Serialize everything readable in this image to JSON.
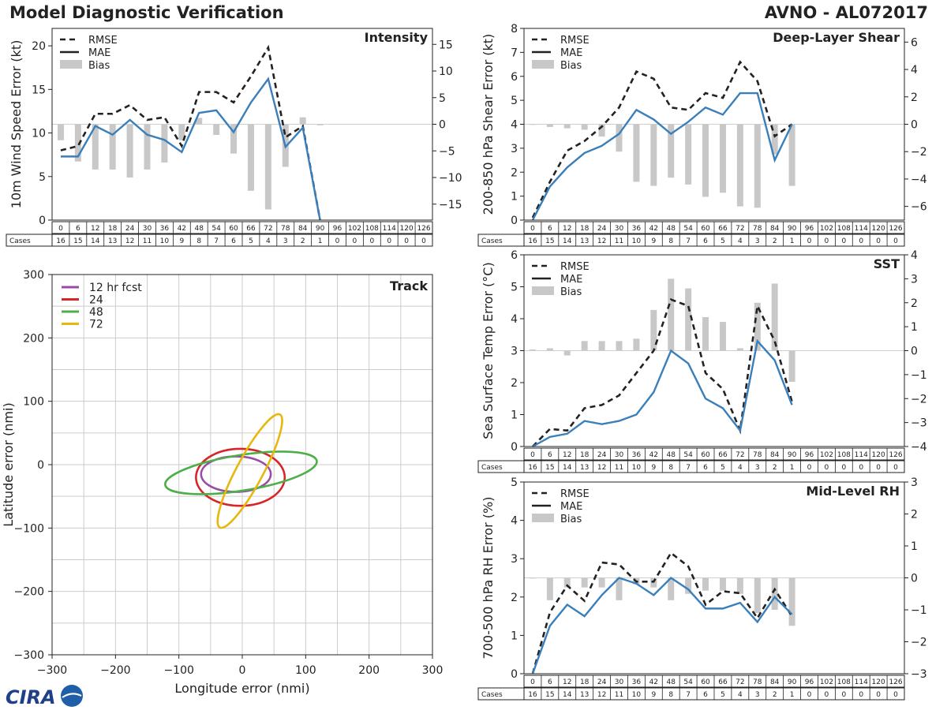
{
  "header": {
    "title": "Model Diagnostic Verification",
    "model_storm": "AVNO - AL072017"
  },
  "logo": {
    "text": "CIRA"
  },
  "colors": {
    "rmse": "#222222",
    "mae": "#3a7fba",
    "bias": "#c8c8c8",
    "grid": "#cccccc",
    "ellipse_12": "#9b4ba3",
    "ellipse_24": "#d62728",
    "ellipse_48": "#4daf4a",
    "ellipse_72": "#e8b70f"
  },
  "legend_labels": {
    "rmse": "RMSE",
    "mae": "MAE",
    "bias": "Bias"
  },
  "cases_label": "Cases",
  "lead_hours": [
    "0",
    "6",
    "12",
    "18",
    "24",
    "30",
    "36",
    "42",
    "48",
    "54",
    "60",
    "66",
    "72",
    "78",
    "84",
    "90",
    "96",
    "102",
    "108",
    "114",
    "120",
    "126"
  ],
  "cases": [
    "16",
    "15",
    "14",
    "13",
    "12",
    "11",
    "10",
    "9",
    "8",
    "7",
    "6",
    "5",
    "4",
    "3",
    "2",
    "1",
    "0",
    "0",
    "0",
    "0",
    "0",
    "0"
  ],
  "chart_data": [
    {
      "id": "intensity",
      "type": "line",
      "title": "Intensity",
      "ylabel": "10m Wind Speed Error (kt)",
      "ylim": [
        0,
        22
      ],
      "yticks": [
        0,
        5,
        10,
        15,
        20
      ],
      "y2lim": [
        -18,
        18
      ],
      "y2ticks": [
        -15,
        -10,
        -5,
        0,
        5,
        10,
        15
      ],
      "x": [
        0,
        6,
        12,
        18,
        24,
        30,
        36,
        42,
        48,
        54,
        60,
        66,
        72,
        78,
        84,
        90
      ],
      "rmse": [
        8.0,
        8.5,
        12.2,
        12.2,
        13.2,
        11.5,
        11.8,
        8.5,
        14.7,
        14.7,
        13.5,
        16.5,
        19.8,
        9.5,
        10.8,
        0
      ],
      "mae": [
        7.3,
        7.3,
        10.8,
        9.8,
        11.5,
        9.8,
        9.2,
        7.8,
        12.3,
        12.6,
        10.1,
        13.5,
        16.2,
        8.4,
        10.6,
        0
      ],
      "bias": [
        -3.0,
        -7.0,
        -8.5,
        -8.5,
        -10.0,
        -8.5,
        -7.2,
        -3.0,
        1.2,
        -2.0,
        -5.5,
        -12.5,
        -16.0,
        -8.0,
        1.3,
        -0.2
      ]
    },
    {
      "id": "shear",
      "type": "line",
      "title": "Deep-Layer Shear",
      "ylabel": "200-850 hPa Shear Error (kt)",
      "ylim": [
        0,
        8
      ],
      "yticks": [
        0,
        1,
        2,
        3,
        4,
        5,
        6,
        7,
        8
      ],
      "y2lim": [
        -7,
        7
      ],
      "y2ticks": [
        -6,
        -4,
        -2,
        0,
        2,
        4,
        6
      ],
      "x": [
        0,
        6,
        12,
        18,
        24,
        30,
        36,
        42,
        48,
        54,
        60,
        66,
        72,
        78,
        84,
        90
      ],
      "rmse": [
        0.1,
        1.6,
        2.9,
        3.3,
        3.9,
        4.7,
        6.2,
        5.9,
        4.7,
        4.6,
        5.3,
        5.1,
        6.6,
        5.8,
        3.5,
        4.0
      ],
      "mae": [
        0.0,
        1.4,
        2.2,
        2.8,
        3.1,
        3.6,
        4.6,
        4.2,
        3.6,
        4.1,
        4.7,
        4.4,
        5.3,
        5.3,
        2.5,
        4.0
      ],
      "bias": [
        0.0,
        -0.2,
        -0.3,
        -0.4,
        -0.9,
        -2.0,
        -4.2,
        -4.5,
        -3.9,
        -4.4,
        -5.3,
        -5.0,
        -6.0,
        -6.1,
        -2.2,
        -4.5
      ]
    },
    {
      "id": "sst",
      "type": "line",
      "title": "SST",
      "ylabel": "Sea Surface Temp Error (°C)",
      "ylim": [
        0,
        6
      ],
      "yticks": [
        0,
        1,
        2,
        3,
        4,
        5,
        6
      ],
      "y2lim": [
        -4,
        4
      ],
      "y2ticks": [
        -4,
        -3,
        -2,
        -1,
        0,
        1,
        2,
        3,
        4
      ],
      "x": [
        0,
        6,
        12,
        18,
        24,
        30,
        36,
        42,
        48,
        54,
        60,
        66,
        72,
        78,
        84,
        90
      ],
      "rmse": [
        0.0,
        0.55,
        0.5,
        1.2,
        1.3,
        1.6,
        2.3,
        3.0,
        4.6,
        4.4,
        2.3,
        1.8,
        0.5,
        4.4,
        3.3,
        1.4
      ],
      "mae": [
        0.0,
        0.3,
        0.4,
        0.8,
        0.7,
        0.8,
        1.0,
        1.7,
        3.0,
        2.6,
        1.5,
        1.2,
        0.5,
        3.3,
        2.7,
        1.3
      ],
      "bias": [
        0.05,
        0.1,
        -0.2,
        0.4,
        0.4,
        0.4,
        0.5,
        1.7,
        3.0,
        2.6,
        1.4,
        1.2,
        0.1,
        2.0,
        2.8,
        -1.3
      ]
    },
    {
      "id": "rh",
      "type": "line",
      "title": "Mid-Level RH",
      "ylabel": "700-500 hPa RH Error (%)",
      "ylim": [
        0,
        5
      ],
      "yticks": [
        0,
        1,
        2,
        3,
        4,
        5
      ],
      "y2lim": [
        -3,
        3
      ],
      "y2ticks": [
        -3,
        -2,
        -1,
        0,
        1,
        2,
        3
      ],
      "x": [
        0,
        6,
        12,
        18,
        24,
        30,
        36,
        42,
        48,
        54,
        60,
        66,
        72,
        78,
        84,
        90
      ],
      "rmse": [
        0.0,
        1.6,
        2.3,
        1.9,
        2.9,
        2.85,
        2.4,
        2.4,
        3.15,
        2.8,
        1.8,
        2.15,
        2.1,
        1.45,
        2.2,
        1.5
      ],
      "mae": [
        0.0,
        1.25,
        1.8,
        1.5,
        2.05,
        2.5,
        2.35,
        2.05,
        2.5,
        2.2,
        1.7,
        1.7,
        1.85,
        1.35,
        2.0,
        1.55
      ],
      "bias": [
        0.0,
        -0.7,
        -0.3,
        -0.3,
        -0.3,
        -0.7,
        -0.2,
        -0.3,
        -0.7,
        -0.5,
        -0.4,
        -0.4,
        -0.5,
        -1.1,
        -1.0,
        -1.5
      ]
    },
    {
      "id": "track",
      "type": "scatter",
      "title": "Track",
      "xlabel": "Longitude error (nmi)",
      "ylabel": "Latitude error (nmi)",
      "xlim": [
        -300,
        300
      ],
      "ylim": [
        -300,
        300
      ],
      "xticks": [
        -300,
        -200,
        -100,
        0,
        100,
        200,
        300
      ],
      "yticks": [
        -300,
        -200,
        -100,
        0,
        100,
        200,
        300
      ],
      "ellipses": [
        {
          "label": "12 hr fcst",
          "cx": -10,
          "cy": -15,
          "rx": 55,
          "ry": 28,
          "angle": 0
        },
        {
          "label": "24",
          "cx": -3,
          "cy": -20,
          "rx": 70,
          "ry": 45,
          "angle": 0
        },
        {
          "label": "48",
          "cx": -2,
          "cy": -13,
          "rx": 121,
          "ry": 28,
          "angle": 9
        },
        {
          "label": "72",
          "cx": 12,
          "cy": -10,
          "rx": 101,
          "ry": 21,
          "angle": 62
        }
      ]
    }
  ]
}
